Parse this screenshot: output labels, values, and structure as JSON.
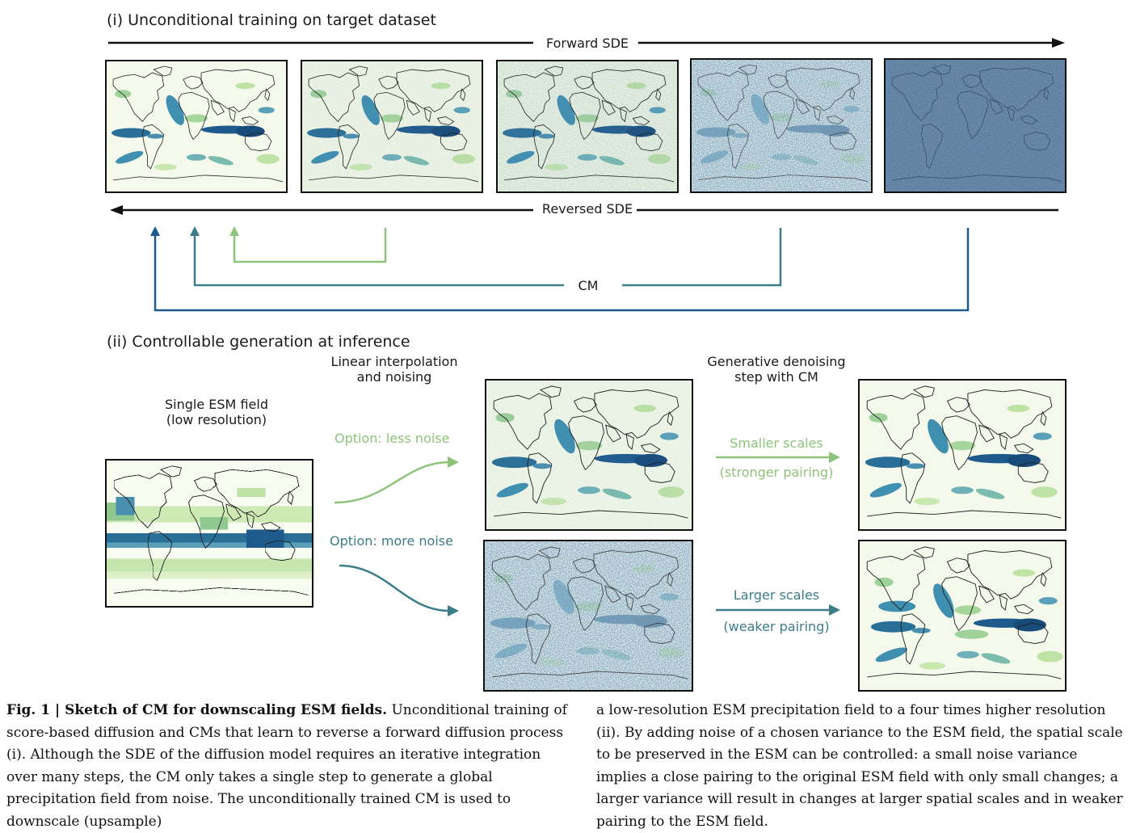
{
  "section1": {
    "title": "(i) Unconditional training on target dataset",
    "forward_label": "Forward SDE",
    "reversed_label": "Reversed SDE",
    "cm_label": "CM",
    "panels": [
      {
        "name": "clean-field",
        "noise": 0.0
      },
      {
        "name": "low-noise-field",
        "noise": 0.12
      },
      {
        "name": "medium-noise-field",
        "noise": 0.3
      },
      {
        "name": "high-noise-field",
        "noise": 0.72
      },
      {
        "name": "pure-noise-field",
        "noise": 1.0
      }
    ]
  },
  "section2": {
    "title": "(ii) Controllable generation at inference",
    "esm_label_line1": "Single ESM field",
    "esm_label_line2": "(low resolution)",
    "interp_line1": "Linear interpolation",
    "interp_line2": "and noising",
    "denoise_line1": "Generative denoising",
    "denoise_line2": "step with CM",
    "option_less": "Option: less noise",
    "option_more": "Option: more noise",
    "smaller_scales": "Smaller scales",
    "stronger_pairing": "(stronger pairing)",
    "larger_scales": "Larger scales",
    "weaker_pairing": "(weaker pairing)"
  },
  "colors": {
    "light_green": "#8dc47a",
    "teal": "#3d7d88",
    "dark_blue": "#1f5a8c",
    "black": "#111111"
  },
  "caption": {
    "figure_label": "Fig. 1 | Sketch of CM for downscaling ESM fields.",
    "left_text": "Unconditional training of score-based diffusion and CMs that learn to reverse a forward diffusion process (i). Although the SDE of the diffusion model requires an iterative integration over many steps, the CM only takes a single step to generate a global precipitation field from noise. The unconditionally trained CM is used to downscale (upsample)",
    "right_text": "a low-resolution ESM precipitation field to a four times higher resolution (ii). By adding noise of a chosen variance to the ESM field, the spatial scale to be preserved in the ESM can be controlled: a small noise variance implies a close pairing to the original ESM field with only small changes; a larger variance will result in changes at larger spatial scales and in weaker pairing to the ESM field."
  }
}
